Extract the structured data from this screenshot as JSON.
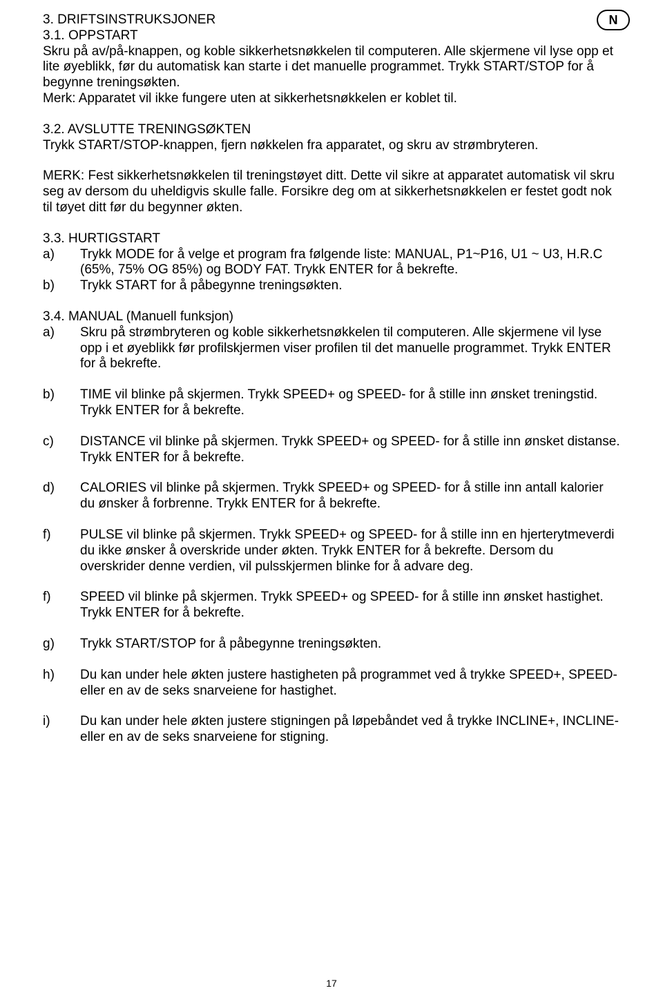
{
  "lang_badge": "N",
  "h3": "3. DRIFTSINSTRUKSJONER",
  "h31": "3.1. OPPSTART",
  "p31": "Skru på av/på-knappen, og koble sikkerhetsnøkkelen til computeren. Alle skjermene vil lyse opp et lite øyeblikk, før du automatisk kan starte i det manuelle programmet. Trykk START/STOP for å begynne treningsøkten.",
  "p31b": "Merk: Apparatet vil ikke fungere uten at sikkerhetsnøkkelen er koblet til.",
  "h32": "3.2. AVSLUTTE TRENINGSØKTEN",
  "p32": "Trykk START/STOP-knappen, fjern nøkkelen fra apparatet, og skru av strømbryteren.",
  "p32b": "MERK: Fest sikkerhetsnøkkelen til treningstøyet ditt. Dette vil sikre at apparatet automatisk vil skru seg av dersom du uheldigvis skulle falle. Forsikre deg om at sikkerhetsnøkkelen er festet godt nok til tøyet ditt før du begynner økten.",
  "h33": "3.3. HURTIGSTART",
  "l33": [
    {
      "m": "a)",
      "t": "Trykk MODE for å velge et program fra følgende liste: MANUAL, P1~P16, U1 ~ U3, H.R.C (65%, 75% OG 85%) og BODY FAT. Trykk ENTER for å bekrefte."
    },
    {
      "m": "b)",
      "t": "Trykk START for å påbegynne treningsøkten."
    }
  ],
  "h34": "3.4. MANUAL (Manuell funksjon)",
  "l34": [
    {
      "m": "a)",
      "t": "Skru på strømbryteren og koble sikkerhetsnøkkelen til computeren. Alle skjermene vil lyse opp i et øyeblikk før profilskjermen viser profilen til det manuelle programmet. Trykk ENTER for å bekrefte."
    },
    {
      "m": "b)",
      "t": "TIME vil blinke på skjermen. Trykk SPEED+ og SPEED- for å stille inn ønsket treningstid. Trykk ENTER for å bekrefte."
    },
    {
      "m": "c)",
      "t": "DISTANCE vil blinke på skjermen. Trykk SPEED+ og SPEED- for å stille inn ønsket distanse. Trykk ENTER for å bekrefte."
    },
    {
      "m": "d)",
      "t": "CALORIES vil blinke på skjermen. Trykk SPEED+ og SPEED- for å stille inn antall kalorier du ønsker å forbrenne. Trykk ENTER for å bekrefte."
    },
    {
      "m": "f)",
      "t": "PULSE vil blinke på skjermen. Trykk SPEED+ og SPEED- for å stille inn en hjerterytmeverdi du ikke ønsker å overskride under økten. Trykk ENTER for å bekrefte. Dersom du overskrider denne verdien, vil pulsskjermen blinke for å advare deg."
    },
    {
      "m": "f)",
      "t": "SPEED vil blinke på skjermen. Trykk SPEED+ og SPEED- for å stille inn ønsket hastighet. Trykk ENTER for å bekrefte."
    },
    {
      "m": "g)",
      "t": "Trykk START/STOP for å påbegynne treningsøkten."
    },
    {
      "m": "h)",
      "t": "Du kan under hele økten justere hastigheten på programmet ved å trykke SPEED+, SPEED- eller en av de seks snarveiene for hastighet."
    },
    {
      "m": "i)",
      "t": "Du kan under hele økten justere stigningen på løpebåndet ved å trykke INCLINE+, INCLINE- eller en av de seks snarveiene for stigning."
    }
  ],
  "page_number": "17"
}
